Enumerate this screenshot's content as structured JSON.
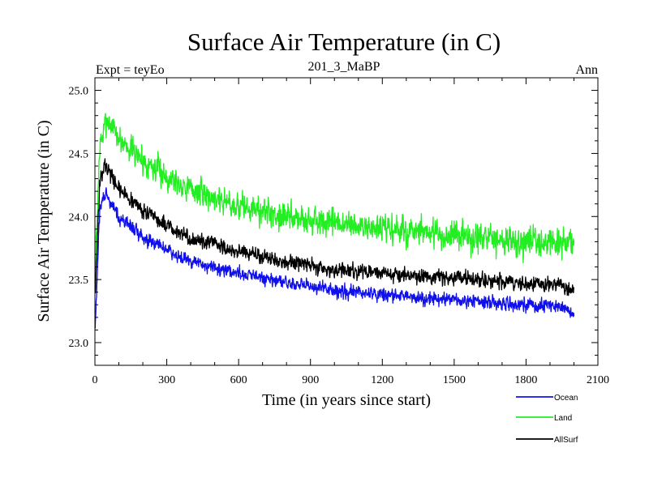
{
  "chart_data": {
    "type": "line",
    "title": "Surface Air Temperature (in C)",
    "subtitle_left": "Expt = teyEo",
    "subtitle_center": "201_3_MaBP",
    "subtitle_right": "Ann",
    "xlabel": "Time (in years since start)",
    "ylabel": "Surface Air Temperature (in C)",
    "xlim": [
      0,
      2100
    ],
    "ylim": [
      22.82,
      25.1
    ],
    "xticks": [
      0,
      300,
      600,
      900,
      1200,
      1500,
      1800,
      2100
    ],
    "xtick_labels": [
      "0",
      "300",
      "600",
      "900",
      "1200",
      "1500",
      "1800",
      "2100"
    ],
    "yticks": [
      23.0,
      23.5,
      24.0,
      24.5,
      25.0
    ],
    "ytick_labels": [
      "23.0",
      "23.5",
      "24.0",
      "24.5",
      "25.0"
    ],
    "legend_position": "bottom-right, below plot",
    "series": [
      {
        "name": "Land",
        "color": "#22ee22",
        "noise": 0.15,
        "seed": 7,
        "keypoints": [
          [
            0,
            23.5
          ],
          [
            20,
            24.55
          ],
          [
            50,
            24.78
          ],
          [
            100,
            24.62
          ],
          [
            200,
            24.45
          ],
          [
            300,
            24.32
          ],
          [
            400,
            24.22
          ],
          [
            600,
            24.08
          ],
          [
            800,
            24.0
          ],
          [
            1000,
            23.94
          ],
          [
            1200,
            23.9
          ],
          [
            1400,
            23.86
          ],
          [
            1600,
            23.82
          ],
          [
            1800,
            23.8
          ],
          [
            1950,
            23.78
          ],
          [
            2000,
            23.8
          ]
        ]
      },
      {
        "name": "AllSurf",
        "color": "#000000",
        "noise": 0.08,
        "seed": 13,
        "keypoints": [
          [
            0,
            23.35
          ],
          [
            20,
            24.25
          ],
          [
            40,
            24.42
          ],
          [
            100,
            24.22
          ],
          [
            200,
            24.05
          ],
          [
            300,
            23.92
          ],
          [
            400,
            23.83
          ],
          [
            600,
            23.72
          ],
          [
            800,
            23.64
          ],
          [
            1000,
            23.58
          ],
          [
            1200,
            23.55
          ],
          [
            1400,
            23.52
          ],
          [
            1600,
            23.5
          ],
          [
            1800,
            23.47
          ],
          [
            1950,
            23.45
          ],
          [
            2000,
            23.42
          ]
        ]
      },
      {
        "name": "Ocean",
        "color": "#1010ee",
        "noise": 0.07,
        "seed": 29,
        "keypoints": [
          [
            0,
            23.05
          ],
          [
            20,
            24.05
          ],
          [
            40,
            24.18
          ],
          [
            100,
            24.0
          ],
          [
            200,
            23.84
          ],
          [
            300,
            23.74
          ],
          [
            400,
            23.64
          ],
          [
            600,
            23.55
          ],
          [
            800,
            23.47
          ],
          [
            1000,
            23.42
          ],
          [
            1200,
            23.38
          ],
          [
            1400,
            23.35
          ],
          [
            1600,
            23.32
          ],
          [
            1800,
            23.3
          ],
          [
            1950,
            23.28
          ],
          [
            2000,
            23.22
          ]
        ]
      }
    ],
    "legend": [
      {
        "label": "Ocean",
        "color": "#1010ee"
      },
      {
        "label": "Land",
        "color": "#22ee22"
      },
      {
        "label": "AllSurf",
        "color": "#000000"
      }
    ]
  }
}
